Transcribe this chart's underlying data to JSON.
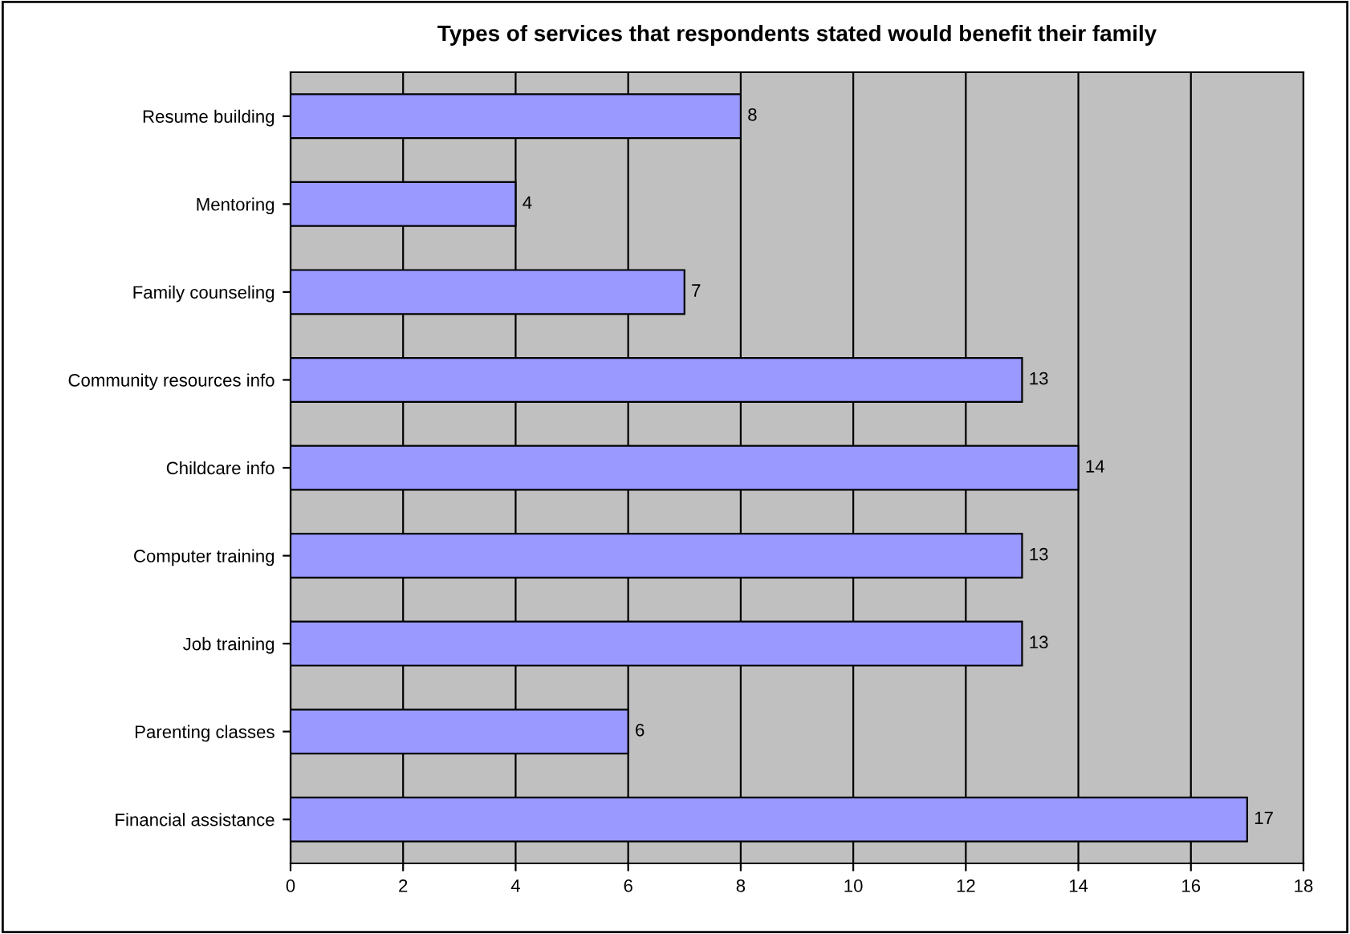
{
  "chart_data": {
    "type": "bar",
    "orientation": "horizontal",
    "title": "Types of services that respondents stated would benefit their family",
    "categories": [
      "Resume building",
      "Mentoring",
      "Family counseling",
      "Community resources info",
      "Childcare info",
      "Computer training",
      "Job training",
      "Parenting classes",
      "Financial assistance"
    ],
    "values": [
      8,
      4,
      7,
      13,
      14,
      13,
      13,
      6,
      17
    ],
    "color": "#9999ff",
    "xlim": [
      0,
      18
    ],
    "xticks": [
      0,
      2,
      4,
      6,
      8,
      10,
      12,
      14,
      16,
      18
    ],
    "grid": "x",
    "data_labels": true,
    "legend": false
  }
}
